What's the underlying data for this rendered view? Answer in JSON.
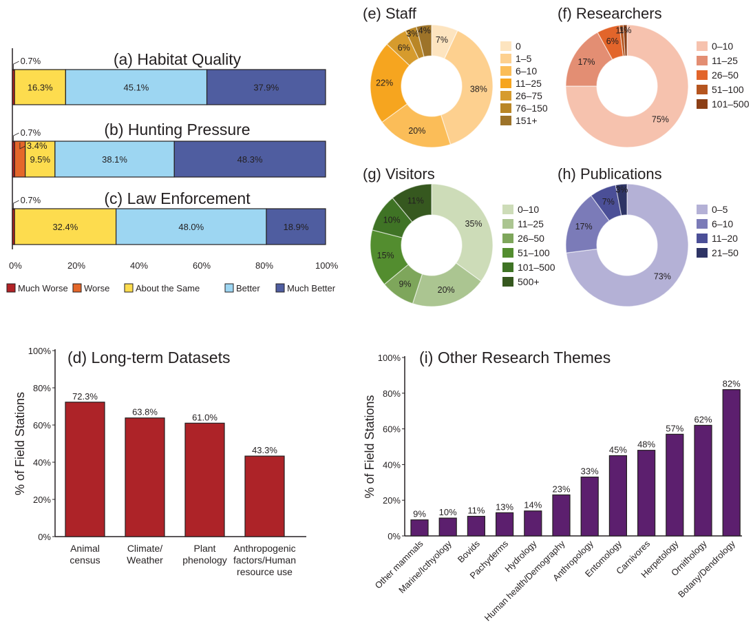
{
  "stacked": {
    "legend": [
      {
        "label": "Much Worse",
        "color": "#b22226"
      },
      {
        "label": "Worse",
        "color": "#e4672a"
      },
      {
        "label": "About the Same",
        "color": "#fddc4e"
      },
      {
        "label": "Better",
        "color": "#9dd6f2"
      },
      {
        "label": "Much Better",
        "color": "#4f5da0"
      }
    ],
    "ticks": [
      "0%",
      "20%",
      "40%",
      "60%",
      "80%",
      "100%"
    ]
  },
  "chart_data": [
    {
      "type": "bar",
      "orientation": "horizontal",
      "stacked": true,
      "title": "(a) Habitat Quality",
      "segments": [
        0.7,
        0,
        16.3,
        45.1,
        37.9
      ],
      "labels": [
        "0.7%",
        "",
        "16.3%",
        "45.1%",
        "37.9%"
      ],
      "xlim": [
        0,
        100
      ]
    },
    {
      "type": "bar",
      "orientation": "horizontal",
      "stacked": true,
      "title": "(b) Hunting Pressure",
      "segments": [
        0.7,
        3.4,
        9.5,
        38.1,
        48.3
      ],
      "labels": [
        "0.7%",
        "3.4%",
        "9.5%",
        "38.1%",
        "48.3%"
      ],
      "xlim": [
        0,
        100
      ]
    },
    {
      "type": "bar",
      "orientation": "horizontal",
      "stacked": true,
      "title": "(c) Law Enforcement",
      "segments": [
        0.7,
        0,
        32.4,
        48.0,
        18.9
      ],
      "labels": [
        "0.7%",
        "",
        "32.4%",
        "48.0%",
        "18.9%"
      ],
      "xlim": [
        0,
        100
      ]
    },
    {
      "type": "bar",
      "title": "(d) Long-term Datasets",
      "ylabel": "% of Field Stations",
      "categories": [
        "Animal census",
        "Climate/ Weather",
        "Plant phenology",
        "Anthropogenic factors/Human resource use"
      ],
      "category_lines": [
        [
          "Animal",
          "census"
        ],
        [
          "Climate/",
          "Weather"
        ],
        [
          "Plant",
          "phenology"
        ],
        [
          "Anthropogenic",
          "factors/Human",
          "resource use"
        ]
      ],
      "values": [
        72.3,
        63.8,
        61.0,
        43.3
      ],
      "labels": [
        "72.3%",
        "63.8%",
        "61.0%",
        "43.3%"
      ],
      "ylim": [
        0,
        100
      ],
      "yticks": [
        "0%",
        "20%",
        "40%",
        "60%",
        "80%",
        "100%"
      ],
      "color": "#ad2328"
    },
    {
      "type": "pie",
      "donut": true,
      "title": "(e) Staff",
      "categories": [
        "0",
        "1–5",
        "6–10",
        "11–25",
        "26–75",
        "76–150",
        "151+"
      ],
      "values": [
        7,
        38,
        20,
        22,
        6,
        3,
        4
      ],
      "labels": [
        "7%",
        "38%",
        "20%",
        "22%",
        "6%",
        "3%",
        "4%"
      ],
      "colors": [
        "#fde4bf",
        "#fdd08f",
        "#fbbd58",
        "#f6a51f",
        "#d69b2d",
        "#b98626",
        "#9d7329"
      ]
    },
    {
      "type": "pie",
      "donut": true,
      "title": "(f) Researchers",
      "categories": [
        "0–10",
        "11–25",
        "26–50",
        "51–100",
        "101–500"
      ],
      "values": [
        75,
        17,
        6,
        1,
        1
      ],
      "labels": [
        "75%",
        "17%",
        "6%",
        "1%",
        "1%"
      ],
      "colors": [
        "#f6c2ae",
        "#e38e73",
        "#e2652b",
        "#b5551f",
        "#8c3f16"
      ]
    },
    {
      "type": "pie",
      "donut": true,
      "title": "(g) Visitors",
      "categories": [
        "0–10",
        "11–25",
        "26–50",
        "51–100",
        "101–500",
        "500+"
      ],
      "values": [
        35,
        20,
        9,
        15,
        10,
        11
      ],
      "labels": [
        "35%",
        "20%",
        "9%",
        "15%",
        "10%",
        "11%"
      ],
      "colors": [
        "#cddcb8",
        "#abc591",
        "#7ea65b",
        "#538d2f",
        "#3f7325",
        "#36581f"
      ]
    },
    {
      "type": "pie",
      "donut": true,
      "title": "(h) Publications",
      "categories": [
        "0–5",
        "6–10",
        "11–20",
        "21–50"
      ],
      "values": [
        73,
        17,
        7,
        3
      ],
      "labels": [
        "73%",
        "17%",
        "7%",
        "3%"
      ],
      "colors": [
        "#b4b1d6",
        "#7b7bb8",
        "#4b4f97",
        "#2e3465"
      ]
    },
    {
      "type": "bar",
      "title": "(i) Other Research Themes",
      "ylabel": "% of Field Stations",
      "categories": [
        "Other mammals",
        "Marine/Icthyology",
        "Bovids",
        "Pachyderms",
        "Hydrology",
        "Human health/Demography",
        "Anthropology",
        "Entomology",
        "Carnivores",
        "Herpetology",
        "Ornithology",
        "Botany/Dendrology"
      ],
      "values": [
        9,
        10,
        11,
        13,
        14,
        23,
        33,
        45,
        48,
        57,
        62,
        82
      ],
      "labels": [
        "9%",
        "10%",
        "11%",
        "13%",
        "14%",
        "23%",
        "33%",
        "45%",
        "48%",
        "57%",
        "62%",
        "82%"
      ],
      "ylim": [
        0,
        100
      ],
      "yticks": [
        "0%",
        "20%",
        "40%",
        "60%",
        "80%",
        "100%"
      ],
      "color": "#5c1f6e"
    }
  ]
}
